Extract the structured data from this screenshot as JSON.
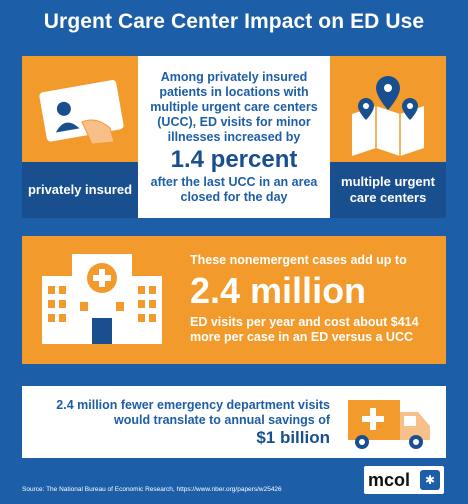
{
  "title": "Urgent Care Center Impact on ED Use",
  "panel1": {
    "left_label": "privately insured",
    "right_label": "multiple urgent care centers",
    "text_top": "Among privately insured patients in locations with multiple urgent care centers (UCC), ED visits for minor illnesses increased by",
    "big": "1.4 percent",
    "text_bottom": "after the last UCC in an area closed for the day"
  },
  "panel2": {
    "line1": "These nonemergent cases add up to",
    "big": "2.4 million",
    "line2": "ED visits per year and cost about $414 more per case in an ED versus a UCC"
  },
  "panel3": {
    "text": "2.4 million fewer emergency department visits would translate to annual savings of",
    "big": "$1 billion"
  },
  "source": "Source: The National Bureau of Economic Research, https://www.nber.org/papers/w25426",
  "logo": {
    "text": "mcol"
  },
  "colors": {
    "background": "#1d5ea8",
    "orange": "#f39a2c",
    "dark_blue": "#1a4f8f",
    "white": "#ffffff"
  }
}
